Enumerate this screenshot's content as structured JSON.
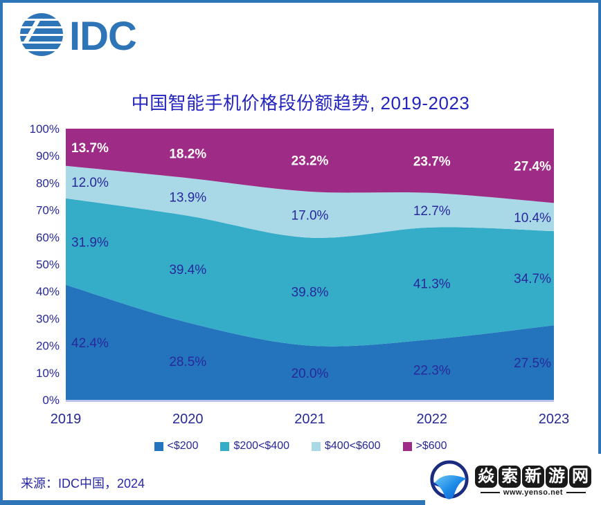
{
  "window": {
    "border_color": "#2E75B8",
    "background": "#ffffff"
  },
  "logo": {
    "text": "IDC",
    "color": "#2E75B8"
  },
  "header": {
    "title": "中国智能手机价格段份额趋势, 2019-2023",
    "title_color": "#2424BE"
  },
  "chart_data": {
    "type": "area",
    "stacked": true,
    "percent_stacked": true,
    "title": "中国智能手机价格段份额趋势, 2019-2023",
    "categories": [
      "2019",
      "2020",
      "2021",
      "2022",
      "2023"
    ],
    "series": [
      {
        "name": "<$200",
        "color": "#2374BC",
        "values": [
          42.4,
          28.5,
          20.0,
          22.3,
          27.5
        ],
        "label_color": "#28289C",
        "label_bold": false
      },
      {
        "name": "$200<$400",
        "color": "#35ACC8",
        "values": [
          31.9,
          39.4,
          39.8,
          41.3,
          34.7
        ],
        "label_color": "#28289C",
        "label_bold": false
      },
      {
        "name": "$400<$600",
        "color": "#A9D8E6",
        "values": [
          12.0,
          13.9,
          17.0,
          12.7,
          10.4
        ],
        "label_color": "#28289C",
        "label_bold": false
      },
      {
        "name": ">$600",
        "color": "#9E2C87",
        "values": [
          13.7,
          18.2,
          23.2,
          23.7,
          27.4
        ],
        "label_color": "#FFFFFF",
        "label_bold": true
      }
    ],
    "ylim": [
      0,
      100
    ],
    "yticks": [
      "100%",
      "90%",
      "80%",
      "70%",
      "60%",
      "50%",
      "40%",
      "30%",
      "20%",
      "10%",
      "0%"
    ],
    "ytick_color": "#282896",
    "xtick_color": "#282896",
    "axis_line_color": "#BEC3EE",
    "grid": false,
    "legend_position": "bottom",
    "data_label_format": "0.0%"
  },
  "footer": {
    "source": "来源：IDC中国，2024"
  },
  "watermark": {
    "site_name": "焱索新游网",
    "url": "www.yenso.net",
    "tile_bg": "#191919",
    "tile_text_color": "#ffffff"
  }
}
